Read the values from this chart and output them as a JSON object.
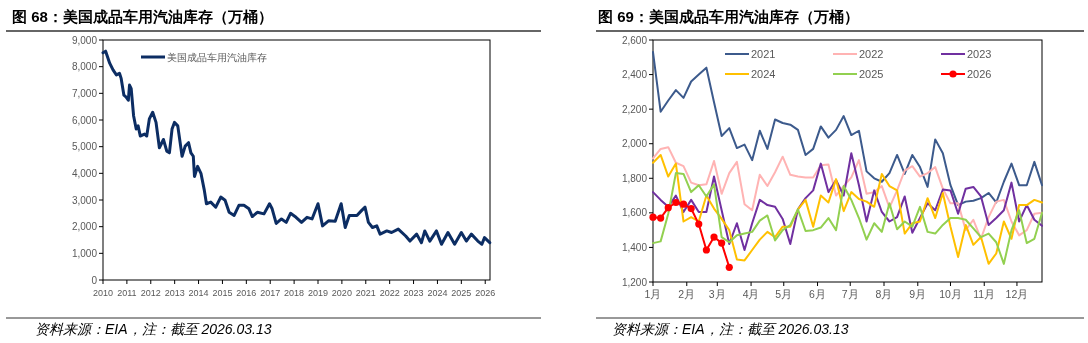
{
  "chart_data": [
    {
      "type": "line",
      "title": "图 68：美国成品车用汽油库存（万桶）",
      "annotations": [
        "资料来源：EIA，注：截至 2026.03.13"
      ],
      "x": [
        2010.0,
        2010.11,
        2010.28,
        2010.42,
        2010.56,
        2010.69,
        2010.76,
        2010.875,
        2010.97,
        2011.06,
        2011.11,
        2011.18,
        2011.28,
        2011.39,
        2011.47,
        2011.56,
        2011.74,
        2011.83,
        2011.94,
        2012.08,
        2012.22,
        2012.36,
        2012.53,
        2012.67,
        2012.78,
        2012.89,
        2012.99,
        2013.13,
        2013.31,
        2013.44,
        2013.58,
        2013.68,
        2013.78,
        2013.83,
        2013.96,
        2014.1,
        2014.24,
        2014.33,
        2014.51,
        2014.72,
        2014.93,
        2015.11,
        2015.28,
        2015.49,
        2015.69,
        2015.9,
        2016.11,
        2016.25,
        2016.46,
        2016.74,
        2016.97,
        2017.08,
        2017.25,
        2017.47,
        2017.67,
        2017.85,
        2018.08,
        2018.31,
        2018.54,
        2018.75,
        2019.0,
        2019.19,
        2019.44,
        2019.72,
        2019.97,
        2020.14,
        2020.31,
        2020.63,
        2020.83,
        2020.97,
        2021.11,
        2021.28,
        2021.46,
        2021.6,
        2021.88,
        2022.08,
        2022.36,
        2022.67,
        2022.85,
        2023.13,
        2023.33,
        2023.47,
        2023.68,
        2023.96,
        2024.17,
        2024.44,
        2024.72,
        2025.0,
        2025.21,
        2025.42,
        2025.69,
        2025.86,
        2025.97,
        2026.19
      ],
      "series": [
        {
          "name": "美国成品车用汽油库存",
          "color": "#0c2d63",
          "values": [
            8520,
            8580,
            8130,
            7880,
            7690,
            7750,
            7560,
            6930,
            6860,
            6740,
            7310,
            7180,
            6160,
            5660,
            5780,
            5400,
            5470,
            5400,
            6040,
            6290,
            5910,
            4960,
            5270,
            4830,
            4770,
            5660,
            5910,
            5780,
            4640,
            5020,
            5150,
            4770,
            4640,
            3880,
            4260,
            4000,
            3370,
            2860,
            2920,
            2730,
            3110,
            2990,
            2540,
            2420,
            2800,
            2800,
            2670,
            2380,
            2540,
            2480,
            2860,
            2670,
            2120,
            2290,
            2160,
            2500,
            2350,
            2160,
            2350,
            2290,
            2860,
            2030,
            2220,
            2200,
            2860,
            1970,
            2420,
            2420,
            2610,
            2730,
            2160,
            1970,
            2030,
            1720,
            1840,
            1780,
            1910,
            1650,
            1460,
            1720,
            1400,
            1840,
            1460,
            1840,
            1340,
            1780,
            1340,
            1780,
            1460,
            1720,
            1460,
            1340,
            1590,
            1400
          ]
        }
      ],
      "xlim": [
        2010,
        2026.2
      ],
      "xticks": [
        2010,
        2011,
        2012,
        2013,
        2014,
        2015,
        2016,
        2017,
        2018,
        2019,
        2020,
        2021,
        2022,
        2023,
        2024,
        2025,
        2026
      ],
      "ylim": [
        0,
        9000
      ],
      "yticks": [
        0,
        {
          "value": 1000,
          "label": "1,000"
        },
        {
          "value": 2000,
          "label": "2,000"
        },
        {
          "value": 3000,
          "label": "3,000"
        },
        {
          "value": 4000,
          "label": "4,000"
        },
        {
          "value": 5000,
          "label": "5,000"
        },
        {
          "value": 6000,
          "label": "6,000"
        },
        {
          "value": 7000,
          "label": "7,000"
        },
        {
          "value": 8000,
          "label": "8,000"
        },
        {
          "value": 9000,
          "label": "9,000"
        }
      ],
      "legend": "top left"
    },
    {
      "type": "line",
      "title": "图 69：美国成品车用汽油库存（万桶）",
      "annotations": [
        "资料来源：EIA，注：截至 2026.03.13"
      ],
      "x": [
        "--01-01",
        "--01-08",
        "--01-15",
        "--01-22",
        "--01-29",
        "--02-05",
        "--02-12",
        "--02-19",
        "--02-26",
        "--03-05",
        "--03-12",
        "--03-19",
        "--03-26",
        "--04-02",
        "--04-09",
        "--04-16",
        "--04-23",
        "--04-30",
        "--05-07",
        "--05-14",
        "--05-21",
        "--05-28",
        "--06-04",
        "--06-11",
        "--06-18",
        "--06-25",
        "--07-02",
        "--07-09",
        "--07-16",
        "--07-23",
        "--07-30",
        "--08-06",
        "--08-13",
        "--08-20",
        "--08-27",
        "--09-03",
        "--09-10",
        "--09-17",
        "--09-24",
        "--10-01",
        "--10-08",
        "--10-15",
        "--10-22",
        "--10-29",
        "--11-05",
        "--11-12",
        "--11-19",
        "--11-26",
        "--12-03",
        "--12-10",
        "--12-17",
        "--12-24"
      ],
      "series": [
        {
          "name": "2021",
          "color": "#3c5a8c",
          "values": [
            2530,
            2185,
            2250,
            2310,
            2265,
            2360,
            2400,
            2440,
            2240,
            2045,
            2090,
            1975,
            1995,
            1905,
            2075,
            1970,
            2140,
            2120,
            2110,
            2080,
            1935,
            1970,
            2100,
            2035,
            2080,
            2160,
            2050,
            2075,
            1840,
            1800,
            1780,
            1830,
            1935,
            1825,
            1935,
            1865,
            1750,
            2025,
            1945,
            1760,
            1645,
            1665,
            1670,
            1685,
            1715,
            1660,
            1780,
            1885,
            1760,
            1760,
            1895,
            1760
          ]
        },
        {
          "name": "2022",
          "color": "#ffb3b3",
          "values": [
            1915,
            1970,
            1980,
            1890,
            1870,
            1775,
            1760,
            1765,
            1900,
            1710,
            1830,
            1895,
            1650,
            1615,
            1820,
            1755,
            1835,
            1925,
            1820,
            1810,
            1805,
            1805,
            1875,
            1880,
            1700,
            1755,
            1805,
            1905,
            1710,
            1720,
            1755,
            1630,
            1730,
            1845,
            1870,
            1810,
            1830,
            1865,
            1740,
            1655,
            1655,
            1500,
            1560,
            1450,
            1575,
            1665,
            1675,
            1550,
            1470,
            1500,
            1595,
            1600
          ]
        },
        {
          "name": "2023",
          "color": "#7030a0",
          "values": [
            1720,
            1675,
            1635,
            1700,
            1605,
            1675,
            1605,
            1605,
            1810,
            1615,
            1420,
            1540,
            1385,
            1540,
            1675,
            1645,
            1635,
            1565,
            1420,
            1620,
            1685,
            1730,
            1885,
            1720,
            1790,
            1700,
            1945,
            1760,
            1550,
            1730,
            1605,
            1550,
            1575,
            1695,
            1485,
            1570,
            1655,
            1615,
            1735,
            1730,
            1595,
            1740,
            1750,
            1695,
            1530,
            1570,
            1615,
            1775,
            1550,
            1645,
            1560,
            1525
          ]
        },
        {
          "name": "2024",
          "color": "#ffc000",
          "values": [
            1890,
            1935,
            1810,
            1885,
            1550,
            1575,
            1550,
            1700,
            1625,
            1565,
            1500,
            1330,
            1325,
            1385,
            1445,
            1490,
            1460,
            1520,
            1520,
            1620,
            1675,
            1520,
            1700,
            1660,
            1795,
            1610,
            1720,
            1680,
            1665,
            1635,
            1825,
            1755,
            1730,
            1480,
            1540,
            1550,
            1685,
            1570,
            1715,
            1520,
            1345,
            1530,
            1415,
            1460,
            1305,
            1365,
            1550,
            1450,
            1645,
            1645,
            1675,
            1660
          ]
        },
        {
          "name": "2025",
          "color": "#92d050",
          "values": [
            1425,
            1435,
            1595,
            1830,
            1825,
            1720,
            1760,
            1695,
            1765,
            1460,
            1430,
            1470,
            1480,
            1490,
            1555,
            1585,
            1440,
            1500,
            1530,
            1620,
            1495,
            1500,
            1515,
            1570,
            1500,
            1755,
            1675,
            1570,
            1445,
            1540,
            1490,
            1655,
            1505,
            1550,
            1520,
            1635,
            1490,
            1480,
            1530,
            1570,
            1570,
            1560,
            1510,
            1460,
            1480,
            1430,
            1305,
            1500,
            1615,
            1425,
            1450,
            1600
          ]
        },
        {
          "name": "2026",
          "color": "#ff0000",
          "marker": "circle",
          "x": [
            "--01-01",
            "--01-08",
            "--01-15",
            "--01-22",
            "--01-29",
            "--02-05",
            "--02-12",
            "--02-19",
            "--02-26",
            "--03-05",
            "--03-12"
          ],
          "values": [
            1575,
            1570,
            1630,
            1660,
            1650,
            1625,
            1535,
            1385,
            1460,
            1425,
            1285
          ]
        }
      ],
      "xlim": [
        "--01-01",
        "--12-24"
      ],
      "xticks": [
        {
          "value": "--01-01",
          "label": "1月"
        },
        {
          "value": "--02-01",
          "label": "2月"
        },
        {
          "value": "--03-01",
          "label": "3月"
        },
        {
          "value": "--04-01",
          "label": "4月"
        },
        {
          "value": "--05-01",
          "label": "5月"
        },
        {
          "value": "--06-01",
          "label": "6月"
        },
        {
          "value": "--07-01",
          "label": "7月"
        },
        {
          "value": "--08-01",
          "label": "8月"
        },
        {
          "value": "--09-01",
          "label": "9月"
        },
        {
          "value": "--10-01",
          "label": "10月"
        },
        {
          "value": "--11-01",
          "label": "11月"
        },
        {
          "value": "--12-01",
          "label": "12月"
        }
      ],
      "ylim": [
        1200,
        2600
      ],
      "yticks": [
        {
          "value": 1200,
          "label": "1,200"
        },
        {
          "value": 1400,
          "label": "1,400"
        },
        {
          "value": 1600,
          "label": "1,600"
        },
        {
          "value": 1800,
          "label": "1,800"
        },
        {
          "value": 2000,
          "label": "2,000"
        },
        {
          "value": 2200,
          "label": "2,200"
        },
        {
          "value": 2400,
          "label": "2,400"
        },
        {
          "value": 2600,
          "label": "2,600"
        }
      ],
      "legend": "top"
    }
  ]
}
